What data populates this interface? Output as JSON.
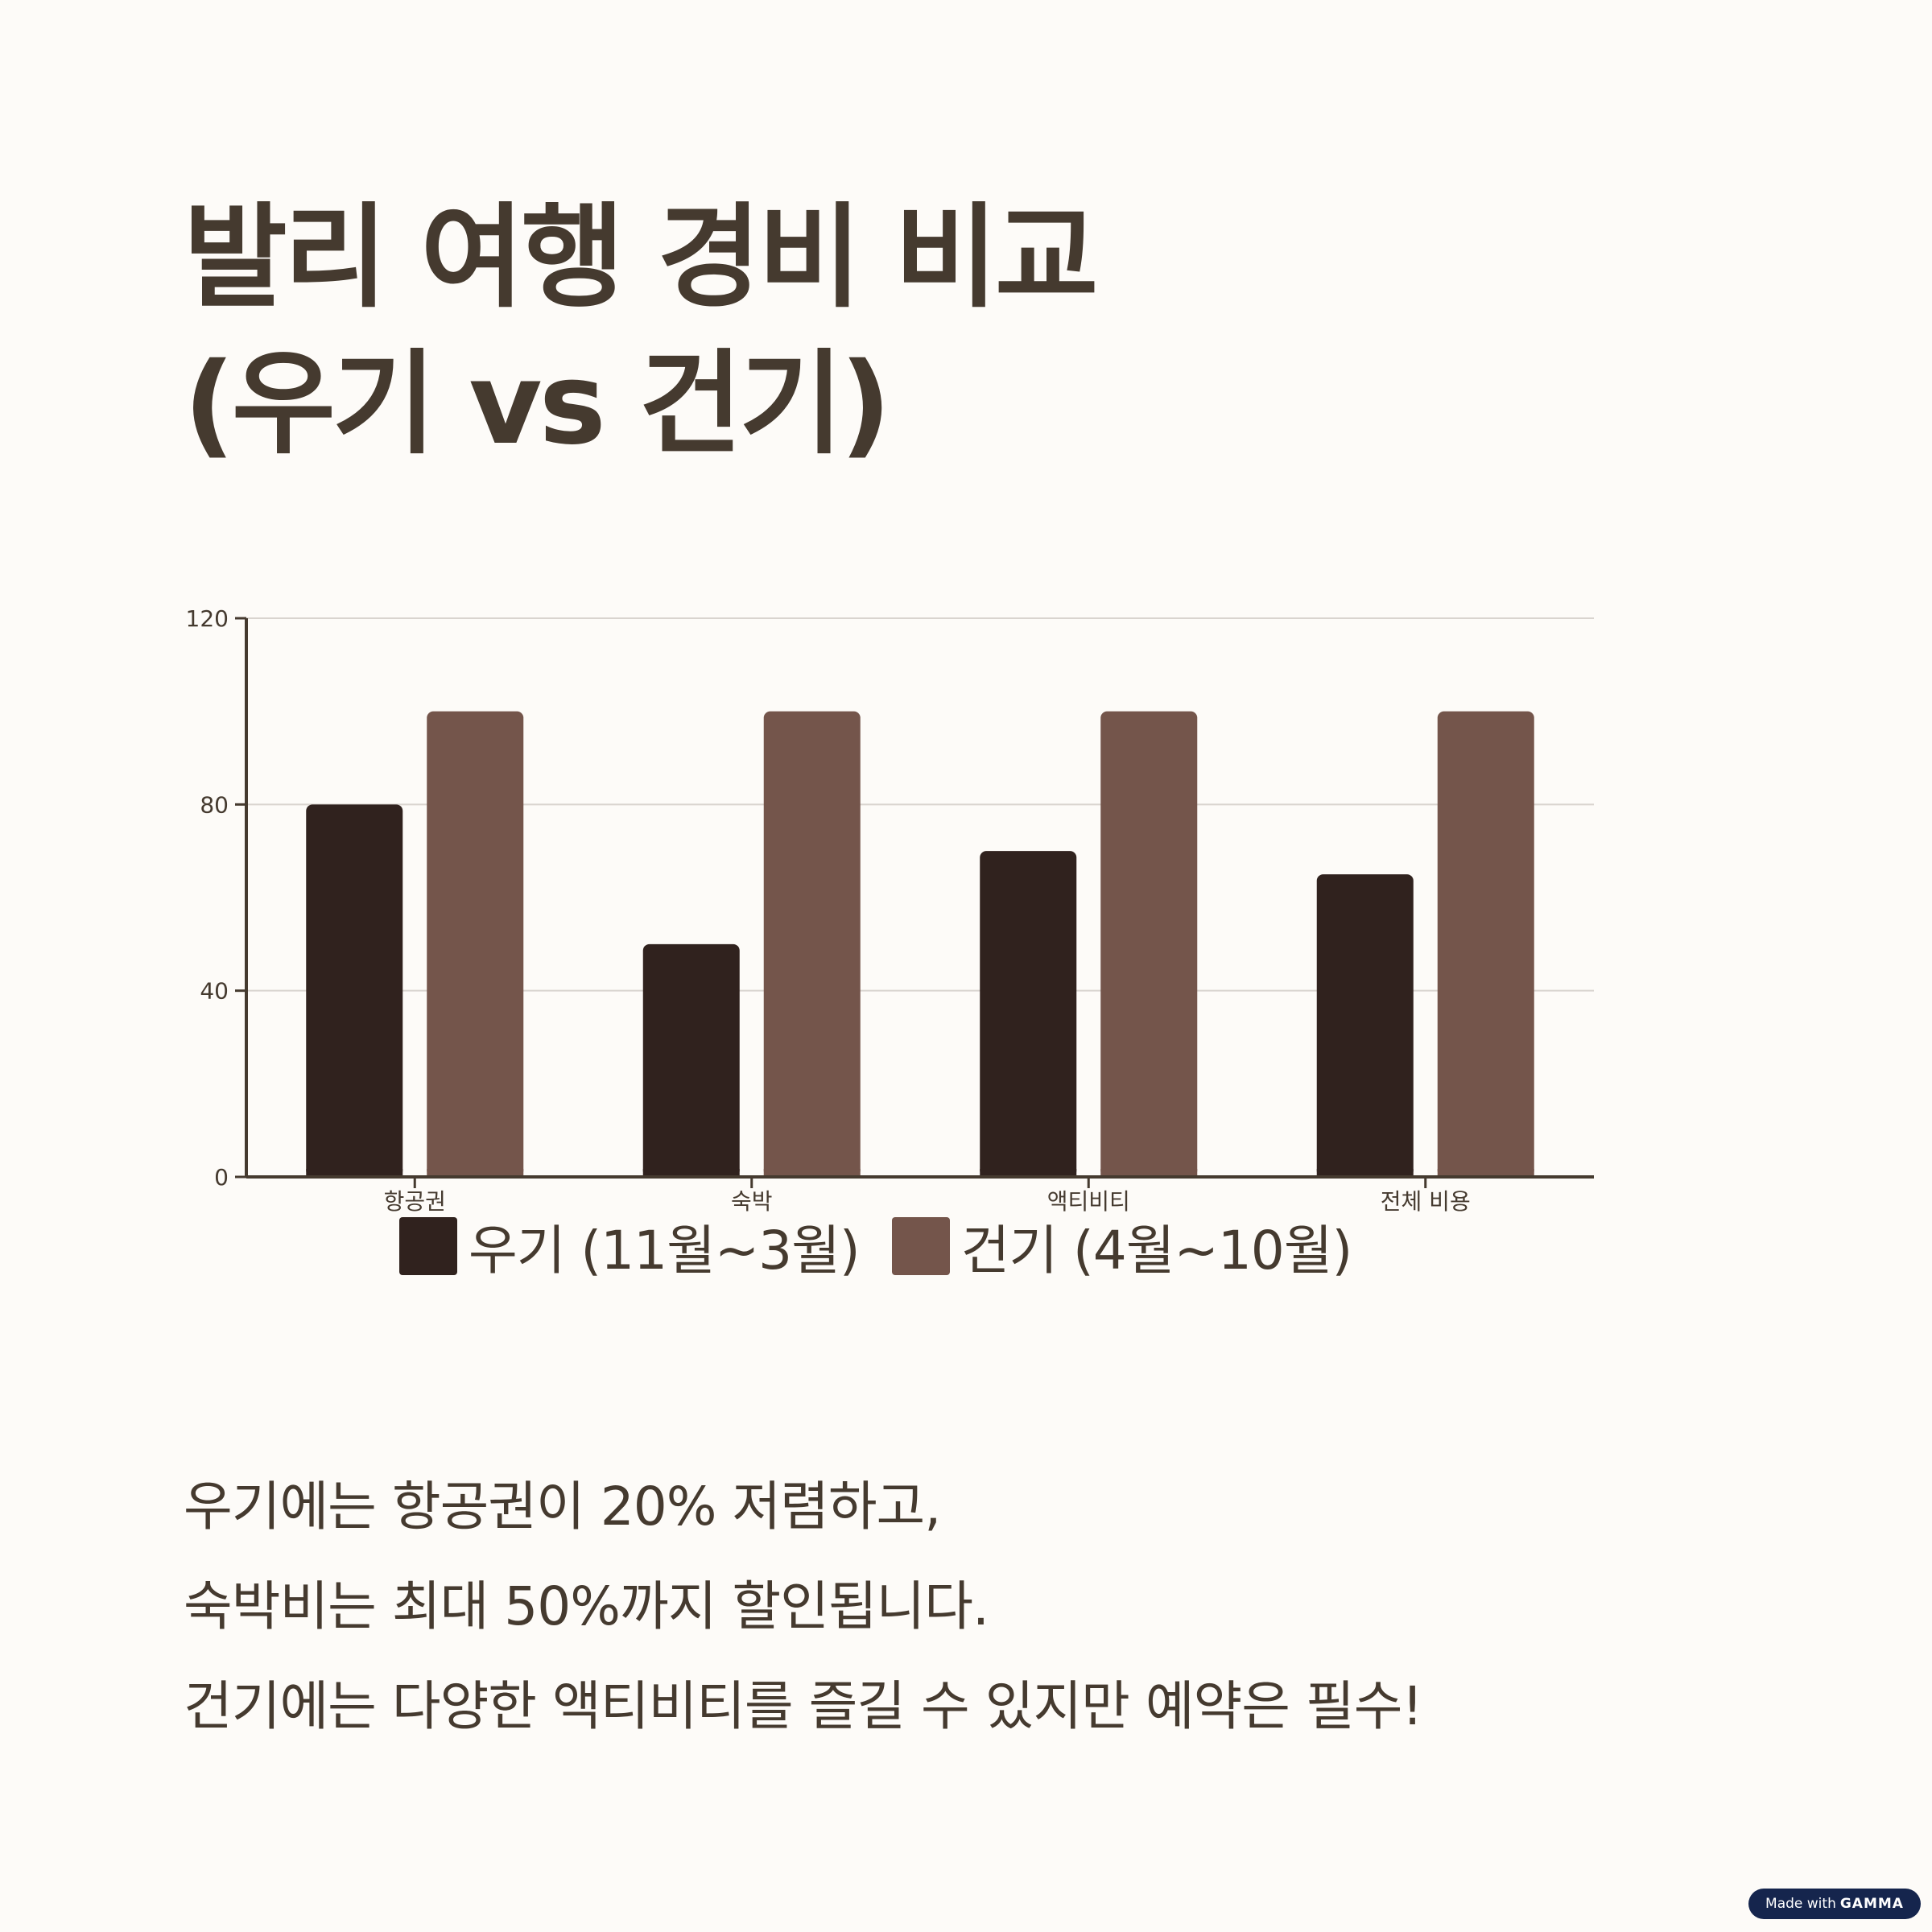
{
  "title": {
    "line1": "발리 여행 경비 비교",
    "line2": "(우기 vs 건기)"
  },
  "chart_data": {
    "type": "bar",
    "categories": [
      "항공권",
      "숙박",
      "액티비티",
      "전체 비용"
    ],
    "series": [
      {
        "name": "우기 (11월~3월)",
        "values": [
          80,
          50,
          70,
          65
        ],
        "color": "#30221e"
      },
      {
        "name": "건기 (4월~10월)",
        "values": [
          100,
          100,
          100,
          100
        ],
        "color": "#74554b"
      }
    ],
    "yticks": [
      0,
      40,
      80,
      120
    ],
    "ylim": [
      0,
      120
    ],
    "grid": true,
    "legend_position": "bottom",
    "xlabel": "",
    "ylabel": ""
  },
  "description": {
    "line1": "우기에는 항공권이 20% 저렴하고,",
    "line2": "숙박비는 최대 50%까지 할인됩니다.",
    "line3": "건기에는 다양한 액티비티를 즐길 수 있지만 예약은 필수!"
  },
  "badge": {
    "prefix": "Made with",
    "brand": "GAMMA"
  },
  "colors": {
    "background": "#fdfbf8",
    "text": "#453a2f",
    "axis": "#453a2f",
    "grid": "#d9d4cf",
    "badge": "#15254d"
  }
}
